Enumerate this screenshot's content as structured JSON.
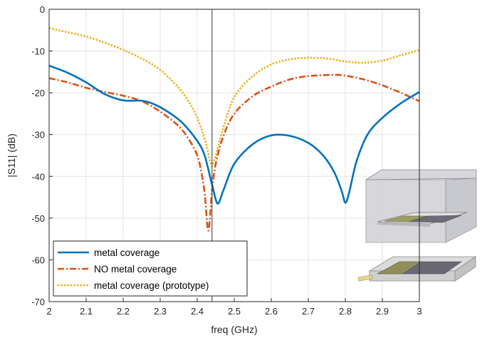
{
  "chart_data": {
    "type": "line",
    "title": "",
    "xlabel": "freq (GHz)",
    "ylabel": "|S11| (dB)",
    "xlim": [
      2,
      3
    ],
    "ylim": [
      -70,
      0
    ],
    "xticks": [
      "2",
      "2.1",
      "2.2",
      "2.3",
      "2.4",
      "2.5",
      "2.6",
      "2.7",
      "2.8",
      "2.9",
      "3"
    ],
    "yticks": [
      "0",
      "-10",
      "-20",
      "-30",
      "-40",
      "-50",
      "-60",
      "-70"
    ],
    "grid": true,
    "legend_position": "bottom-left",
    "vertical_marker_x": 2.44,
    "series": [
      {
        "name": "metal coverage",
        "color": "#0072BD",
        "style": "solid",
        "x": [
          2.0,
          2.05,
          2.1,
          2.15,
          2.2,
          2.25,
          2.28,
          2.32,
          2.36,
          2.4,
          2.42,
          2.44,
          2.455,
          2.47,
          2.5,
          2.55,
          2.6,
          2.65,
          2.7,
          2.74,
          2.77,
          2.79,
          2.8,
          2.81,
          2.83,
          2.86,
          2.9,
          2.95,
          3.0
        ],
        "y": [
          -13.5,
          -15.2,
          -17.5,
          -20.3,
          -21.8,
          -21.9,
          -22.6,
          -24.5,
          -27.2,
          -31.5,
          -35.0,
          -42.0,
          -46.5,
          -43.5,
          -37.0,
          -32.3,
          -30.2,
          -30.3,
          -32.0,
          -35.0,
          -39.0,
          -43.5,
          -46.3,
          -44.0,
          -36.5,
          -30.0,
          -26.0,
          -22.5,
          -19.8
        ]
      },
      {
        "name": "NO metal coverage",
        "color": "#D95319",
        "style": "dashdot",
        "x": [
          2.0,
          2.05,
          2.1,
          2.15,
          2.2,
          2.25,
          2.3,
          2.35,
          2.38,
          2.4,
          2.41,
          2.42,
          2.43,
          2.44,
          2.45,
          2.47,
          2.5,
          2.55,
          2.6,
          2.65,
          2.7,
          2.77,
          2.8,
          2.85,
          2.9,
          2.95,
          3.0
        ],
        "y": [
          -16.5,
          -17.5,
          -18.8,
          -19.8,
          -20.7,
          -22.0,
          -24.5,
          -28.0,
          -31.5,
          -35.0,
          -38.5,
          -44.0,
          -53.0,
          -43.5,
          -37.0,
          -30.5,
          -25.0,
          -20.8,
          -18.5,
          -16.8,
          -16.0,
          -15.7,
          -15.9,
          -16.8,
          -18.2,
          -20.0,
          -22.0
        ]
      },
      {
        "name": "metal coverage (prototype)",
        "color": "#EDB120",
        "style": "dotted",
        "x": [
          2.0,
          2.05,
          2.1,
          2.15,
          2.2,
          2.25,
          2.3,
          2.35,
          2.38,
          2.4,
          2.42,
          2.435,
          2.44,
          2.45,
          2.47,
          2.5,
          2.55,
          2.6,
          2.65,
          2.7,
          2.75,
          2.8,
          2.85,
          2.9,
          2.95,
          3.0
        ],
        "y": [
          -4.5,
          -5.5,
          -6.5,
          -8.0,
          -9.7,
          -11.8,
          -14.5,
          -18.8,
          -22.5,
          -26.0,
          -31.0,
          -36.5,
          -37.5,
          -35.0,
          -28.5,
          -21.0,
          -16.0,
          -13.2,
          -12.0,
          -11.6,
          -11.8,
          -12.5,
          -12.8,
          -12.3,
          -11.0,
          -9.8
        ]
      }
    ]
  },
  "inset": {
    "name": "antenna-model-renderings",
    "colors": {
      "box": "#bfbfc4",
      "box_edge": "#8a8a90",
      "substrate": "#d9d9d9",
      "patch": "#9a9a6a",
      "metal": "#6d6a78",
      "feed": "#e6d58f"
    }
  }
}
